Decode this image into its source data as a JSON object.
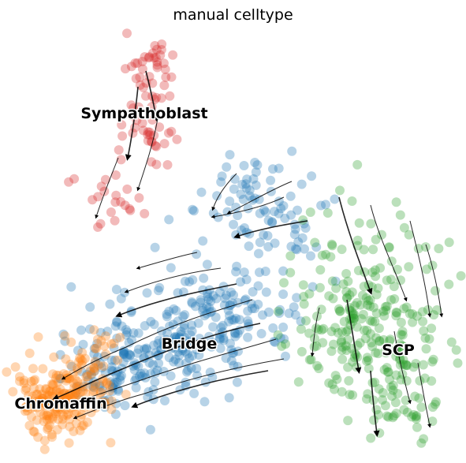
{
  "chart_data": {
    "type": "scatter",
    "title": "manual celltype",
    "xlabel": "",
    "ylabel": "",
    "grid": false,
    "axes_visible": false,
    "overlay": "velocity stream arrows",
    "clusters": [
      {
        "name": "Sympathoblast",
        "color": "#d62728"
      },
      {
        "name": "Bridge",
        "color": "#1f77b4"
      },
      {
        "name": "SCP",
        "color": "#2ca02c"
      },
      {
        "name": "Chromaffin",
        "color": "#ff7f0e"
      }
    ]
  }
}
